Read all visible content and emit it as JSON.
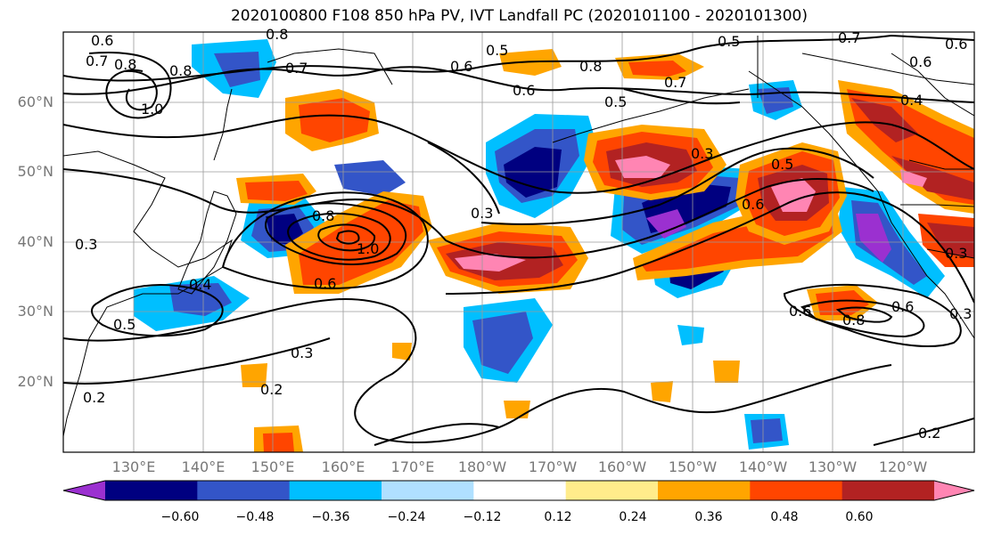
{
  "title": "2020100800 F108 850 hPa PV, IVT Landfall PC (2020101100 - 2020101300)",
  "lat_labels": [
    "60°N",
    "50°N",
    "40°N",
    "30°N",
    "20°N"
  ],
  "lon_labels": [
    "130°E",
    "140°E",
    "150°E",
    "160°E",
    "170°E",
    "180°W",
    "170°W",
    "160°W",
    "150°W",
    "140°W",
    "130°W",
    "120°W"
  ],
  "colorbar": {
    "colors": [
      "#9b30d0",
      "#000080",
      "#3355c8",
      "#00bfff",
      "#b0e0ff",
      "#ffffff",
      "#ffec8b",
      "#ffa500",
      "#ff4500",
      "#b22222",
      "#ff85b3"
    ],
    "ticks": [
      "−0.60",
      "−0.48",
      "−0.36",
      "−0.24",
      "−0.12",
      "0.12",
      "0.24",
      "0.36",
      "0.48",
      "0.60"
    ]
  },
  "contour_labels": [
    "0.6",
    "0.7",
    "0.8",
    "0.8",
    "0.8",
    "0.7",
    "0.6",
    "0.5",
    "0.6",
    "0.8",
    "0.7",
    "0.5",
    "0.7",
    "0.6",
    "0.6",
    "0.4",
    "0.5",
    "1.0",
    "0.3",
    "0.5",
    "0.3",
    "0.8",
    "1.0",
    "0.6",
    "0.4",
    "0.3",
    "0.6",
    "0.3",
    "0.5",
    "0.2",
    "0.3",
    "0.6",
    "0.8",
    "0.6",
    "0.3",
    "0.2",
    "0.2"
  ]
}
